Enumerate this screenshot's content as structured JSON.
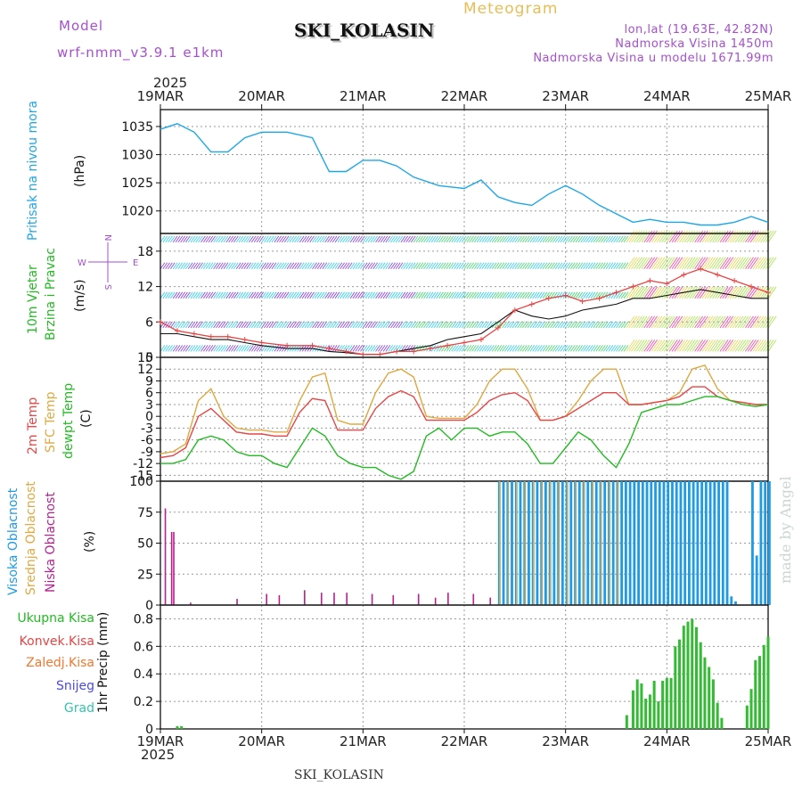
{
  "header": {
    "model_label": "Model",
    "model_name": "wrf-nmm_v3.9.1 e1km",
    "station": "SKI_KOLASIN",
    "meteogram": "Meteogram",
    "lonlat": "lon,lat (19.63E, 42.82N)",
    "altitude": "Nadmorska Visina 1450m",
    "model_altitude": "Nadmorska Visina u modelu 1671.99m",
    "top_year": "2025",
    "bottom_year": "2025",
    "bottom_station": "SKI_KOLASIN",
    "watermark": "made by Angel"
  },
  "axis_days": [
    "19MAR",
    "20MAR",
    "21MAR",
    "22MAR",
    "23MAR",
    "24MAR",
    "25MAR"
  ],
  "colors": {
    "pressure": "#1ea7e6",
    "temp2m": "#e84545",
    "sfc": "#e0a840",
    "dewpt": "#22bb22",
    "visoka": "#1e9be6",
    "srednja": "#e0a840",
    "niska": "#b5218f",
    "precip": "#33bb33",
    "wind_label": "#22bb22",
    "wind_speed": "#e84545",
    "gust": "#111111"
  },
  "labels": {
    "pressure": "Pritisak na nivou mora",
    "pressure_unit": "(hPa)",
    "wind1": "10m Vjetar",
    "wind2": "Brzina i Pravac",
    "wind_unit": "(m/s)",
    "compass_n": "N",
    "compass_s": "S",
    "compass_e": "E",
    "compass_w": "W",
    "temp2m": "2m Temp",
    "sfc": "SFC Temp",
    "dewpt": "dewpt Temp",
    "temp_unit": "(C)",
    "visoka": "Visoka Oblacnost",
    "srednja": "Srednja Oblacnost",
    "niska": "Niska Oblacnost",
    "cloud_unit": "(%)",
    "precip_axis": "1hr Precip (mm)",
    "ukupna": "Ukupna Kisa",
    "konvek": "Konvek.Kisa",
    "zaledj": "Zaledj.Kisa",
    "snijeg": "Snijeg",
    "grad": "Grad"
  },
  "chart_data": [
    {
      "type": "line",
      "name": "pressure",
      "x_hours": [
        0,
        4,
        8,
        12,
        16,
        20,
        24,
        30,
        36,
        40,
        44,
        48,
        52,
        56,
        60,
        66,
        72,
        76,
        80,
        84,
        88,
        92,
        96,
        100,
        104,
        108,
        112,
        116,
        120,
        124,
        128,
        132,
        136,
        140,
        144
      ],
      "values": [
        1034.5,
        1035.5,
        1034,
        1030.5,
        1030.5,
        1033,
        1034,
        1034,
        1033,
        1027,
        1027,
        1029,
        1029,
        1028,
        1026,
        1024.5,
        1024,
        1025.5,
        1022.5,
        1021.5,
        1021,
        1023,
        1024.5,
        1023,
        1021,
        1019.5,
        1018,
        1018.5,
        1018,
        1018,
        1017.5,
        1017.5,
        1018,
        1019,
        1018
      ],
      "ylim": [
        1016,
        1038
      ],
      "yticks": [
        1020,
        1025,
        1030,
        1035
      ]
    },
    {
      "type": "line",
      "name": "wind_speed",
      "x_hours": [
        0,
        4,
        8,
        12,
        16,
        20,
        24,
        30,
        36,
        40,
        44,
        48,
        52,
        56,
        60,
        64,
        68,
        72,
        76,
        80,
        84,
        88,
        92,
        96,
        100,
        104,
        108,
        112,
        116,
        120,
        124,
        128,
        132,
        136,
        140,
        144
      ],
      "values": [
        6,
        4.5,
        4,
        3.5,
        3.5,
        3,
        2.5,
        2,
        2,
        1.5,
        1,
        0.5,
        0.5,
        1,
        1,
        1.5,
        2,
        2.5,
        3,
        5,
        8,
        9,
        10,
        10.5,
        9.5,
        10,
        11,
        12,
        13,
        12.5,
        14,
        15,
        14,
        13,
        12,
        11
      ],
      "gust_values": [
        4,
        4,
        3.5,
        3,
        3,
        2.5,
        2,
        1.5,
        1.5,
        1,
        0.8,
        0.5,
        0.5,
        1,
        1.5,
        2,
        3,
        3.5,
        4,
        6,
        8,
        7,
        6.5,
        7,
        8,
        8.5,
        9,
        10,
        10,
        10.5,
        11,
        11.5,
        11,
        10.5,
        10,
        10
      ],
      "ylim": [
        0,
        21
      ],
      "yticks": [
        0,
        6,
        12,
        18
      ]
    },
    {
      "type": "line",
      "name": "temperature",
      "x_hours": [
        0,
        3,
        6,
        9,
        12,
        15,
        18,
        21,
        24,
        27,
        30,
        33,
        36,
        39,
        42,
        45,
        48,
        51,
        54,
        57,
        60,
        63,
        66,
        69,
        72,
        75,
        78,
        81,
        84,
        87,
        90,
        93,
        96,
        99,
        102,
        105,
        108,
        111,
        114,
        117,
        120,
        123,
        126,
        129,
        132,
        135,
        138,
        141,
        144
      ],
      "temp2m": [
        -10.5,
        -10,
        -8,
        0,
        2,
        -1,
        -4,
        -4.5,
        -4.5,
        -5,
        -5,
        1,
        4.5,
        4,
        -3.5,
        -3.5,
        -3.5,
        2,
        5,
        6.5,
        5,
        -1,
        -1,
        -1,
        -1,
        1,
        4,
        5.5,
        6,
        4,
        -1,
        -1,
        0,
        2,
        4,
        6,
        6,
        3,
        3,
        3.5,
        4,
        5,
        7.5,
        7.5,
        5,
        4,
        3.5,
        3,
        3
      ],
      "sfc": [
        -9.5,
        -9,
        -7,
        4,
        7,
        0,
        -3,
        -3.5,
        -3.5,
        -4,
        -4,
        4,
        10,
        11,
        -1,
        -2,
        -2,
        6,
        11,
        12,
        10,
        0,
        -0.5,
        -0.5,
        -0.5,
        3,
        9,
        12,
        12,
        7,
        -1,
        -1,
        0,
        4,
        9,
        12,
        12,
        3,
        3,
        3.5,
        4,
        6,
        12,
        13,
        7,
        4,
        3.5,
        3,
        3
      ],
      "dewpt": [
        -12,
        -12,
        -11,
        -6,
        -5,
        -6,
        -9,
        -10,
        -10,
        -12,
        -13,
        -8,
        -3,
        -5,
        -10,
        -12,
        -13,
        -13,
        -15,
        -16,
        -14,
        -5,
        -3,
        -6,
        -3,
        -3,
        -5,
        -4,
        -4,
        -7,
        -12,
        -12,
        -8,
        -4,
        -6,
        -10,
        -13,
        -7,
        1,
        2,
        3,
        3,
        4,
        5,
        5,
        4,
        3,
        2.5,
        3
      ],
      "ylim": [
        -16.5,
        15
      ],
      "yticks": [
        -15,
        -12,
        -9,
        -6,
        -3,
        0,
        3,
        6,
        9,
        12,
        15
      ]
    },
    {
      "type": "bar",
      "name": "cloud_cover",
      "ylim": [
        0,
        100
      ],
      "yticks": [
        0,
        25,
        50,
        75,
        100
      ],
      "niska": [
        [
          1,
          78
        ],
        [
          2.5,
          59
        ],
        [
          3,
          59
        ],
        [
          7,
          2
        ],
        [
          18,
          5
        ],
        [
          25,
          9
        ],
        [
          28,
          8
        ],
        [
          34,
          12
        ],
        [
          38,
          10
        ],
        [
          41,
          10
        ],
        [
          44,
          10
        ],
        [
          50,
          9
        ],
        [
          55,
          8
        ],
        [
          61,
          9
        ],
        [
          65,
          6
        ],
        [
          68,
          10
        ],
        [
          74,
          9
        ],
        [
          78,
          6
        ]
      ],
      "high_start_hour": 80,
      "high_end_hour": 144,
      "high_gap_hours": [
        [
          134.5,
          139
        ]
      ],
      "high_low_hours": [
        [
          135,
          7
        ],
        [
          136,
          3
        ],
        [
          141,
          40
        ]
      ]
    },
    {
      "type": "bar",
      "name": "precip_1hr",
      "ylim": [
        0,
        0.9
      ],
      "yticks": [
        0,
        0.2,
        0.4,
        0.6,
        0.8
      ],
      "points": [
        [
          4,
          0.02
        ],
        [
          5,
          0.02
        ],
        [
          110.5,
          0.1
        ],
        [
          112,
          0.28
        ],
        [
          113,
          0.36
        ],
        [
          114,
          0.33
        ],
        [
          115,
          0.22
        ],
        [
          116,
          0.25
        ],
        [
          117,
          0.35
        ],
        [
          118,
          0.2
        ],
        [
          119,
          0.35
        ],
        [
          120,
          0.37
        ],
        [
          121,
          0.37
        ],
        [
          122,
          0.6
        ],
        [
          123,
          0.65
        ],
        [
          124,
          0.75
        ],
        [
          125,
          0.78
        ],
        [
          126,
          0.8
        ],
        [
          127,
          0.74
        ],
        [
          128,
          0.63
        ],
        [
          129,
          0.52
        ],
        [
          130,
          0.45
        ],
        [
          131,
          0.36
        ],
        [
          132,
          0.19
        ],
        [
          133,
          0.08
        ],
        [
          139,
          0.17
        ],
        [
          140,
          0.29
        ],
        [
          141,
          0.5
        ],
        [
          142,
          0.53
        ],
        [
          143,
          0.61
        ],
        [
          144,
          0.67
        ]
      ]
    }
  ]
}
